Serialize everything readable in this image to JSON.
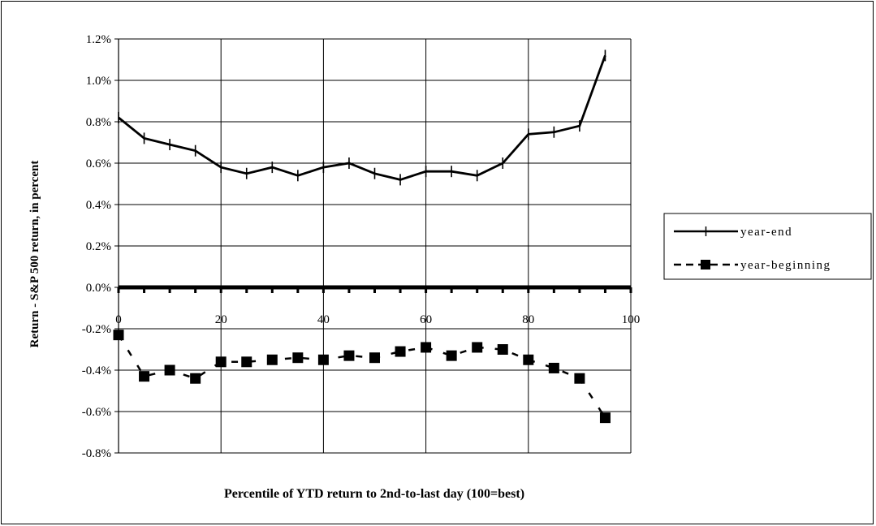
{
  "chart_data": {
    "type": "line",
    "title": "",
    "xlabel": "Percentile of YTD return to 2nd-to-last day (100=best)",
    "ylabel": "Return - S&P 500 return, in percent",
    "xlim": [
      0,
      100
    ],
    "ylim": [
      -0.8,
      1.2
    ],
    "x_ticks": [
      "0",
      "20",
      "40",
      "60",
      "80",
      "100"
    ],
    "y_ticks": [
      "-0.8%",
      "-0.6%",
      "-0.4%",
      "-0.2%",
      "0.0%",
      "0.2%",
      "0.4%",
      "0.6%",
      "0.8%",
      "1.0%",
      "1.2%"
    ],
    "grid": true,
    "legend_position": "right",
    "x": [
      0,
      5,
      10,
      15,
      20,
      25,
      30,
      35,
      40,
      45,
      50,
      55,
      60,
      65,
      70,
      75,
      80,
      85,
      90,
      95
    ],
    "series": [
      {
        "name": "year-end",
        "style": "solid",
        "marker": "plus",
        "color": "#000000",
        "values": [
          0.82,
          0.72,
          0.69,
          0.66,
          0.58,
          0.55,
          0.58,
          0.54,
          0.58,
          0.6,
          0.55,
          0.52,
          0.56,
          0.56,
          0.54,
          0.6,
          0.74,
          0.75,
          0.78,
          1.12
        ]
      },
      {
        "name": "year-beginning",
        "style": "dashed",
        "marker": "square",
        "color": "#000000",
        "values": [
          -0.23,
          -0.43,
          -0.4,
          -0.44,
          -0.36,
          -0.36,
          -0.35,
          -0.34,
          -0.35,
          -0.33,
          -0.34,
          -0.31,
          -0.29,
          -0.33,
          -0.29,
          -0.3,
          -0.35,
          -0.39,
          -0.44,
          -0.63
        ]
      }
    ]
  }
}
